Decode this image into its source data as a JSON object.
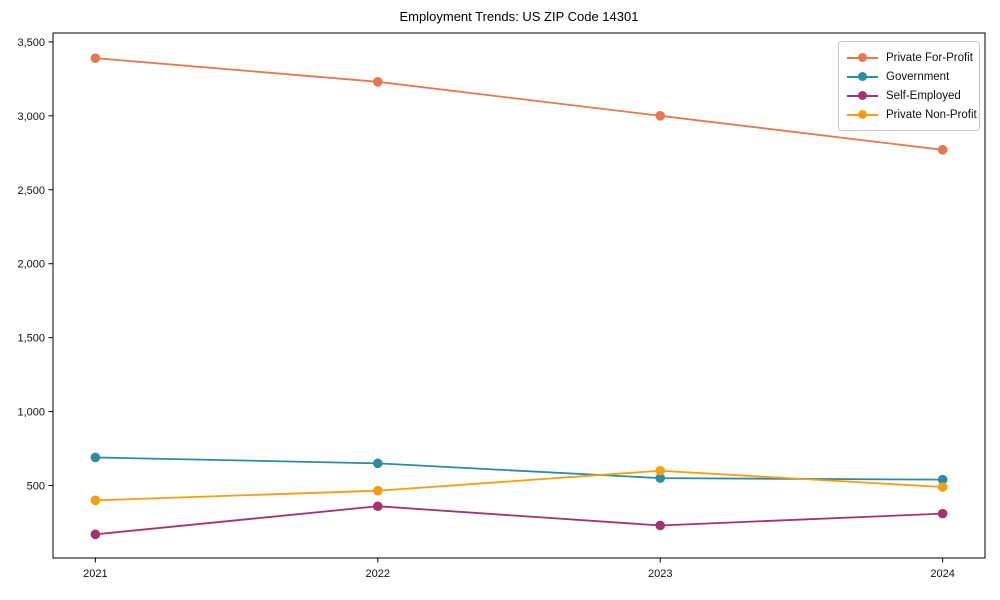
{
  "chart_data": {
    "type": "line",
    "title": "Employment Trends: US ZIP Code 14301",
    "xlabel": "",
    "ylabel": "",
    "categories": [
      "2021",
      "2022",
      "2023",
      "2024"
    ],
    "series": [
      {
        "name": "Private For-Profit",
        "color": "#E6784B",
        "values": [
          3390,
          3230,
          3000,
          2770
        ]
      },
      {
        "name": "Government",
        "color": "#288CAA",
        "values": [
          690,
          650,
          550,
          540
        ]
      },
      {
        "name": "Self-Employed",
        "color": "#A5326E",
        "values": [
          170,
          360,
          230,
          310
        ]
      },
      {
        "name": "Private Non-Profit",
        "color": "#F59E0F",
        "values": [
          400,
          465,
          600,
          490
        ]
      }
    ],
    "yticks": [
      {
        "v": 500,
        "label": "500"
      },
      {
        "v": 1000,
        "label": "1,000"
      },
      {
        "v": 1500,
        "label": "1,500"
      },
      {
        "v": 2000,
        "label": "2,000"
      },
      {
        "v": 2500,
        "label": "2,500"
      },
      {
        "v": 3000,
        "label": "3,000"
      },
      {
        "v": 3500,
        "label": "3,500"
      }
    ],
    "ylim": [
      10,
      3560
    ],
    "grid": false,
    "legend_position": "upper right",
    "marker": "circle",
    "spine_color": "#000000"
  }
}
